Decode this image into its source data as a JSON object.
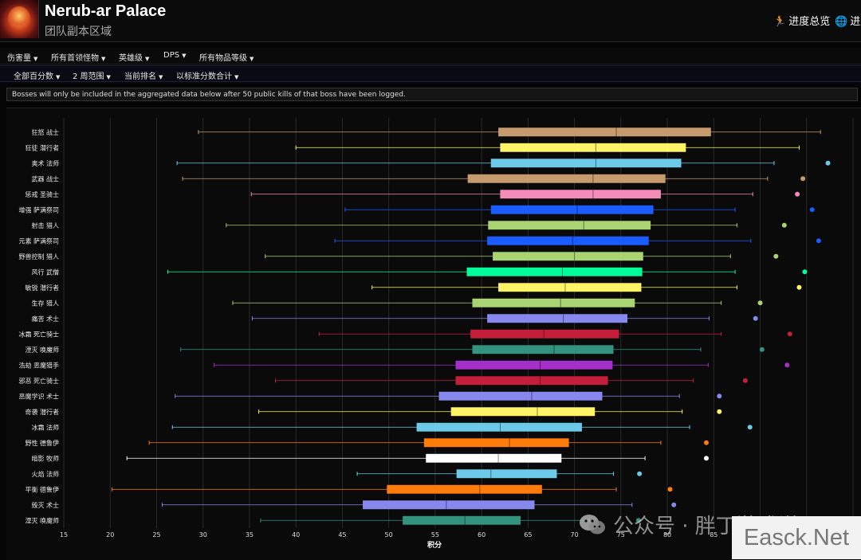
{
  "header": {
    "title": "Nerub-ar Palace",
    "subtitle": "团队副本区域",
    "links": [
      {
        "icon": "running-person-icon",
        "label": "进度总览"
      },
      {
        "icon": "globe-icon",
        "label": "进度"
      }
    ]
  },
  "filters_row1": [
    {
      "label": "伤害量"
    },
    {
      "label": "所有首领怪物"
    },
    {
      "label": "英雄级"
    },
    {
      "label": "DPS"
    },
    {
      "label": "所有物品等级"
    }
  ],
  "filters_row2": [
    {
      "label": "全部百分数"
    },
    {
      "label": "2 周范围"
    },
    {
      "label": "当前排名"
    },
    {
      "label": "以标准分数合计"
    }
  ],
  "notice": "Bosses will only be included in the aggregated data below after 50 public kills of that boss have been logged.",
  "chart_data": {
    "type": "boxplot",
    "orientation": "horizontal",
    "xlabel": "积分",
    "xlim": [
      15,
      100
    ],
    "xticks": [
      15,
      20,
      25,
      30,
      35,
      40,
      45,
      50,
      55,
      60,
      65,
      70,
      75,
      80,
      85,
      90,
      95,
      100
    ],
    "grid": true,
    "series": [
      {
        "name": "狂怒 战士",
        "color": "#c69b6d",
        "min": 29.5,
        "q1": 61.8,
        "median": 74.5,
        "q3": 84.7,
        "max": 96.5,
        "outlier": 105.5
      },
      {
        "name": "狂徒 潜行者",
        "color": "#fff468",
        "min": 40.0,
        "q1": 62.0,
        "median": 72.3,
        "q3": 82.0,
        "max": 94.2,
        "outlier": 103.8
      },
      {
        "name": "奥术 法师",
        "color": "#6ccae8",
        "min": 27.2,
        "q1": 61.0,
        "median": 72.3,
        "q3": 81.5,
        "max": 91.5,
        "outlier": 97.3
      },
      {
        "name": "武器 战士",
        "color": "#c69b6d",
        "min": 27.8,
        "q1": 58.5,
        "median": 72.0,
        "q3": 79.8,
        "max": 90.8,
        "outlier": 94.6
      },
      {
        "name": "惩戒 圣骑士",
        "color": "#f48cba",
        "min": 35.2,
        "q1": 62.0,
        "median": 72.0,
        "q3": 79.3,
        "max": 89.2,
        "outlier": 94.0
      },
      {
        "name": "增强 萨满祭司",
        "color": "#1a5cff",
        "min": 45.3,
        "q1": 61.0,
        "median": 70.3,
        "q3": 78.5,
        "max": 87.3,
        "outlier": 95.6
      },
      {
        "name": "射击 猎人",
        "color": "#aad372",
        "min": 32.5,
        "q1": 60.7,
        "median": 71.0,
        "q3": 78.2,
        "max": 87.5,
        "outlier": 92.6
      },
      {
        "name": "元素 萨满祭司",
        "color": "#1a5cff",
        "min": 44.2,
        "q1": 60.6,
        "median": 69.8,
        "q3": 78.0,
        "max": 89.0,
        "outlier": 96.3
      },
      {
        "name": "野兽控制 猎人",
        "color": "#aad372",
        "min": 36.7,
        "q1": 61.2,
        "median": 70.0,
        "q3": 77.4,
        "max": 86.8,
        "outlier": 91.7
      },
      {
        "name": "风行 武僧",
        "color": "#00ff98",
        "min": 26.2,
        "q1": 58.4,
        "median": 68.7,
        "q3": 77.3,
        "max": 87.3,
        "outlier": 94.8
      },
      {
        "name": "敏锐 潜行者",
        "color": "#fff468",
        "min": 48.2,
        "q1": 61.8,
        "median": 69.0,
        "q3": 77.2,
        "max": 87.5,
        "outlier": 94.2
      },
      {
        "name": "生存 猎人",
        "color": "#aad372",
        "min": 33.2,
        "q1": 59.0,
        "median": 68.5,
        "q3": 76.5,
        "max": 85.8,
        "outlier": 90.0
      },
      {
        "name": "痛苦 术士",
        "color": "#8788ee",
        "min": 35.3,
        "q1": 60.6,
        "median": 68.8,
        "q3": 75.7,
        "max": 84.5,
        "outlier": 89.5
      },
      {
        "name": "冰霜 死亡骑士",
        "color": "#c41e3a",
        "min": 42.5,
        "q1": 58.8,
        "median": 66.7,
        "q3": 74.8,
        "max": 85.8,
        "outlier": 93.2
      },
      {
        "name": "湮灭 唤魔师",
        "color": "#33937f",
        "min": 27.6,
        "q1": 59.0,
        "median": 67.8,
        "q3": 74.2,
        "max": 83.6,
        "outlier": 90.2
      },
      {
        "name": "浩劫 恶魔猎手",
        "color": "#a330c9",
        "min": 31.2,
        "q1": 57.2,
        "median": 66.3,
        "q3": 74.1,
        "max": 84.4,
        "outlier": 92.9
      },
      {
        "name": "邪恶 死亡骑士",
        "color": "#c41e3a",
        "min": 37.8,
        "q1": 57.2,
        "median": 66.3,
        "q3": 73.6,
        "max": 82.8,
        "outlier": 88.4
      },
      {
        "name": "恶魔学识 术士",
        "color": "#8788ee",
        "min": 27.0,
        "q1": 55.4,
        "median": 65.4,
        "q3": 73.0,
        "max": 81.3,
        "outlier": 85.6
      },
      {
        "name": "奇袭 潜行者",
        "color": "#fff468",
        "min": 36.0,
        "q1": 56.7,
        "median": 66.0,
        "q3": 72.2,
        "max": 81.6,
        "outlier": 85.6
      },
      {
        "name": "冰霜 法师",
        "color": "#6ccae8",
        "min": 26.7,
        "q1": 53.0,
        "median": 62.0,
        "q3": 70.8,
        "max": 82.4,
        "outlier": 88.9
      },
      {
        "name": "野性 德鲁伊",
        "color": "#ff7c0a",
        "min": 24.2,
        "q1": 53.8,
        "median": 63.0,
        "q3": 69.4,
        "max": 79.3,
        "outlier": 84.2
      },
      {
        "name": "暗影 牧师",
        "color": "#ffffff",
        "min": 21.8,
        "q1": 54.0,
        "median": 61.8,
        "q3": 68.6,
        "max": 77.6,
        "outlier": 84.2
      },
      {
        "name": "火焰 法师",
        "color": "#6ccae8",
        "min": 46.6,
        "q1": 57.3,
        "median": 61.0,
        "q3": 68.1,
        "max": 74.2,
        "outlier": 77.0
      },
      {
        "name": "平衡 德鲁伊",
        "color": "#ff7c0a",
        "min": 20.2,
        "q1": 49.8,
        "median": 59.8,
        "q3": 66.5,
        "max": 74.5,
        "outlier": 80.3
      },
      {
        "name": "毁灭 术士",
        "color": "#8788ee",
        "min": 25.6,
        "q1": 47.2,
        "median": 56.2,
        "q3": 65.7,
        "max": 76.2,
        "outlier": 80.7
      },
      {
        "name": "湮灭 唤魔师",
        "color": "#33937f",
        "min": 36.2,
        "q1": 51.5,
        "median": 58.2,
        "q3": 64.2,
        "max": 71.6,
        "outlier": 76.9
      }
    ]
  },
  "watermark": {
    "icon": "wechat-icon",
    "text": "公众号 · 胖丁游戏说"
  },
  "badge": "Easck.Net"
}
